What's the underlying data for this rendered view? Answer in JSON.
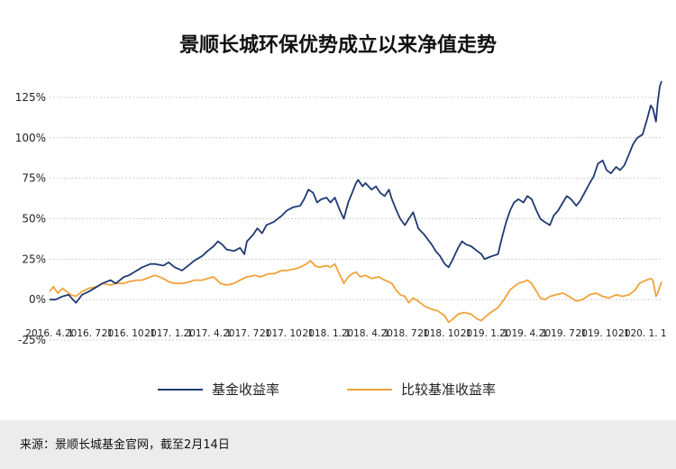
{
  "chart_data": {
    "type": "line",
    "title": "景顺长城环保优势成立以来净值走势",
    "y_unit": "%",
    "ylim": [
      -25,
      135
    ],
    "y_ticks": [
      -25,
      0,
      25,
      50,
      75,
      100,
      125
    ],
    "y_tick_labels": [
      "-25%",
      "0%",
      "25%",
      "50%",
      "75%",
      "100%",
      "125%"
    ],
    "x_range": [
      "2016-04-01",
      "2020-02-14"
    ],
    "x_ticks": [
      "2016-04-01",
      "2016-07-01",
      "2016-10-01",
      "2017-01-01",
      "2017-04-01",
      "2017-07-01",
      "2017-10-01",
      "2018-01-01",
      "2018-04-01",
      "2018-07-01",
      "2018-10-01",
      "2019-01-01",
      "2019-04-01",
      "2019-07-01",
      "2019-10-01",
      "2020-01-01"
    ],
    "x_tick_labels": [
      "2016. 4. 1",
      "2016. 7. 1",
      "2016. 10. 1",
      "2017. 1. 1",
      "2017. 4. 1",
      "2017. 7. 1",
      "2017. 10. 1",
      "2018. 1. 1",
      "2018. 4. 1",
      "2018. 7. 1",
      "2018. 10. 1",
      "2019. 1. 1",
      "2019. 4. 1",
      "2019. 7. 1",
      "2019. 10. 1",
      "2020. 1. 1"
    ],
    "grid": "horizontal",
    "legend": "bottom",
    "series": [
      {
        "name": "基金收益率",
        "color": "#1f3a73",
        "points": [
          [
            "2016-04-01",
            0
          ],
          [
            "2016-04-15",
            0
          ],
          [
            "2016-05-01",
            2
          ],
          [
            "2016-05-15",
            3
          ],
          [
            "2016-05-25",
            0
          ],
          [
            "2016-06-01",
            -2
          ],
          [
            "2016-06-15",
            3
          ],
          [
            "2016-07-01",
            5
          ],
          [
            "2016-07-20",
            8
          ],
          [
            "2016-08-01",
            10
          ],
          [
            "2016-08-20",
            12
          ],
          [
            "2016-09-01",
            10
          ],
          [
            "2016-09-20",
            14
          ],
          [
            "2016-10-01",
            15
          ],
          [
            "2016-10-20",
            18
          ],
          [
            "2016-11-01",
            20
          ],
          [
            "2016-11-20",
            22
          ],
          [
            "2016-12-01",
            22
          ],
          [
            "2016-12-20",
            21
          ],
          [
            "2017-01-01",
            23
          ],
          [
            "2017-01-15",
            20
          ],
          [
            "2017-02-01",
            18
          ],
          [
            "2017-02-20",
            22
          ],
          [
            "2017-03-01",
            24
          ],
          [
            "2017-03-20",
            27
          ],
          [
            "2017-04-01",
            30
          ],
          [
            "2017-04-15",
            33
          ],
          [
            "2017-04-25",
            36
          ],
          [
            "2017-05-05",
            34
          ],
          [
            "2017-05-15",
            31
          ],
          [
            "2017-06-01",
            30
          ],
          [
            "2017-06-15",
            32
          ],
          [
            "2017-06-25",
            28
          ],
          [
            "2017-07-01",
            36
          ],
          [
            "2017-07-15",
            40
          ],
          [
            "2017-07-25",
            44
          ],
          [
            "2017-08-05",
            41
          ],
          [
            "2017-08-15",
            46
          ],
          [
            "2017-09-01",
            48
          ],
          [
            "2017-09-20",
            52
          ],
          [
            "2017-10-01",
            55
          ],
          [
            "2017-10-15",
            57
          ],
          [
            "2017-11-01",
            58
          ],
          [
            "2017-11-10",
            62
          ],
          [
            "2017-11-20",
            68
          ],
          [
            "2017-12-01",
            66
          ],
          [
            "2017-12-10",
            60
          ],
          [
            "2017-12-20",
            62
          ],
          [
            "2018-01-01",
            63
          ],
          [
            "2018-01-10",
            60
          ],
          [
            "2018-01-20",
            63
          ],
          [
            "2018-02-01",
            55
          ],
          [
            "2018-02-10",
            50
          ],
          [
            "2018-02-20",
            60
          ],
          [
            "2018-03-01",
            66
          ],
          [
            "2018-03-10",
            72
          ],
          [
            "2018-03-15",
            74
          ],
          [
            "2018-03-25",
            70
          ],
          [
            "2018-04-01",
            72
          ],
          [
            "2018-04-15",
            68
          ],
          [
            "2018-04-25",
            70
          ],
          [
            "2018-05-05",
            66
          ],
          [
            "2018-05-15",
            64
          ],
          [
            "2018-05-25",
            68
          ],
          [
            "2018-06-01",
            62
          ],
          [
            "2018-06-10",
            56
          ],
          [
            "2018-06-20",
            50
          ],
          [
            "2018-07-01",
            46
          ],
          [
            "2018-07-10",
            50
          ],
          [
            "2018-07-20",
            54
          ],
          [
            "2018-08-01",
            44
          ],
          [
            "2018-08-15",
            40
          ],
          [
            "2018-09-01",
            34
          ],
          [
            "2018-09-10",
            30
          ],
          [
            "2018-09-20",
            27
          ],
          [
            "2018-10-01",
            22
          ],
          [
            "2018-10-10",
            20
          ],
          [
            "2018-10-20",
            25
          ],
          [
            "2018-11-01",
            32
          ],
          [
            "2018-11-10",
            36
          ],
          [
            "2018-11-20",
            34
          ],
          [
            "2018-12-01",
            33
          ],
          [
            "2018-12-15",
            30
          ],
          [
            "2018-12-25",
            28
          ],
          [
            "2019-01-01",
            25
          ],
          [
            "2019-01-10",
            26
          ],
          [
            "2019-01-20",
            27
          ],
          [
            "2019-02-01",
            28
          ],
          [
            "2019-02-10",
            38
          ],
          [
            "2019-02-20",
            48
          ],
          [
            "2019-03-01",
            55
          ],
          [
            "2019-03-10",
            60
          ],
          [
            "2019-03-20",
            62
          ],
          [
            "2019-04-01",
            60
          ],
          [
            "2019-04-10",
            64
          ],
          [
            "2019-04-20",
            62
          ],
          [
            "2019-05-01",
            55
          ],
          [
            "2019-05-10",
            50
          ],
          [
            "2019-05-20",
            48
          ],
          [
            "2019-06-01",
            46
          ],
          [
            "2019-06-10",
            52
          ],
          [
            "2019-06-20",
            55
          ],
          [
            "2019-07-01",
            60
          ],
          [
            "2019-07-10",
            64
          ],
          [
            "2019-07-20",
            62
          ],
          [
            "2019-08-01",
            58
          ],
          [
            "2019-08-10",
            61
          ],
          [
            "2019-08-20",
            66
          ],
          [
            "2019-09-01",
            72
          ],
          [
            "2019-09-10",
            76
          ],
          [
            "2019-09-20",
            84
          ],
          [
            "2019-10-01",
            86
          ],
          [
            "2019-10-10",
            80
          ],
          [
            "2019-10-20",
            78
          ],
          [
            "2019-11-01",
            82
          ],
          [
            "2019-11-10",
            80
          ],
          [
            "2019-11-20",
            83
          ],
          [
            "2019-12-01",
            90
          ],
          [
            "2019-12-10",
            96
          ],
          [
            "2019-12-20",
            100
          ],
          [
            "2020-01-01",
            102
          ],
          [
            "2020-01-10",
            110
          ],
          [
            "2020-01-20",
            120
          ],
          [
            "2020-01-25",
            118
          ],
          [
            "2020-02-01",
            110
          ],
          [
            "2020-02-05",
            122
          ],
          [
            "2020-02-10",
            132
          ],
          [
            "2020-02-14",
            135
          ]
        ]
      },
      {
        "name": "比较基准收益率",
        "color": "#f2a23a",
        "points": [
          [
            "2016-04-01",
            5
          ],
          [
            "2016-04-10",
            8
          ],
          [
            "2016-04-20",
            4
          ],
          [
            "2016-05-01",
            7
          ],
          [
            "2016-05-10",
            5
          ],
          [
            "2016-05-20",
            3
          ],
          [
            "2016-06-01",
            2
          ],
          [
            "2016-06-15",
            5
          ],
          [
            "2016-07-01",
            7
          ],
          [
            "2016-07-20",
            8
          ],
          [
            "2016-08-01",
            10
          ],
          [
            "2016-08-20",
            9
          ],
          [
            "2016-09-01",
            10
          ],
          [
            "2016-09-20",
            10
          ],
          [
            "2016-10-01",
            11
          ],
          [
            "2016-10-20",
            12
          ],
          [
            "2016-11-01",
            12
          ],
          [
            "2016-11-20",
            14
          ],
          [
            "2016-12-01",
            15
          ],
          [
            "2016-12-20",
            13
          ],
          [
            "2017-01-01",
            11
          ],
          [
            "2017-01-15",
            10
          ],
          [
            "2017-02-01",
            10
          ],
          [
            "2017-02-20",
            11
          ],
          [
            "2017-03-01",
            12
          ],
          [
            "2017-03-20",
            12
          ],
          [
            "2017-04-01",
            13
          ],
          [
            "2017-04-15",
            14
          ],
          [
            "2017-05-01",
            10
          ],
          [
            "2017-05-15",
            9
          ],
          [
            "2017-06-01",
            10
          ],
          [
            "2017-06-15",
            12
          ],
          [
            "2017-07-01",
            14
          ],
          [
            "2017-07-20",
            15
          ],
          [
            "2017-08-01",
            14
          ],
          [
            "2017-08-20",
            16
          ],
          [
            "2017-09-01",
            16
          ],
          [
            "2017-09-20",
            18
          ],
          [
            "2017-10-01",
            18
          ],
          [
            "2017-10-20",
            19
          ],
          [
            "2017-11-01",
            20
          ],
          [
            "2017-11-15",
            22
          ],
          [
            "2017-11-25",
            24
          ],
          [
            "2017-12-05",
            21
          ],
          [
            "2017-12-15",
            20
          ],
          [
            "2018-01-01",
            21
          ],
          [
            "2018-01-10",
            20
          ],
          [
            "2018-01-20",
            22
          ],
          [
            "2018-02-01",
            15
          ],
          [
            "2018-02-10",
            10
          ],
          [
            "2018-02-20",
            14
          ],
          [
            "2018-03-01",
            16
          ],
          [
            "2018-03-10",
            17
          ],
          [
            "2018-03-20",
            14
          ],
          [
            "2018-04-01",
            15
          ],
          [
            "2018-04-15",
            13
          ],
          [
            "2018-05-01",
            14
          ],
          [
            "2018-05-15",
            12
          ],
          [
            "2018-06-01",
            10
          ],
          [
            "2018-06-10",
            6
          ],
          [
            "2018-06-20",
            3
          ],
          [
            "2018-07-01",
            2
          ],
          [
            "2018-07-10",
            -2
          ],
          [
            "2018-07-20",
            1
          ],
          [
            "2018-08-01",
            -1
          ],
          [
            "2018-08-15",
            -4
          ],
          [
            "2018-09-01",
            -6
          ],
          [
            "2018-09-15",
            -7
          ],
          [
            "2018-10-01",
            -10
          ],
          [
            "2018-10-10",
            -14
          ],
          [
            "2018-10-20",
            -12
          ],
          [
            "2018-11-01",
            -9
          ],
          [
            "2018-11-15",
            -8
          ],
          [
            "2018-12-01",
            -9
          ],
          [
            "2018-12-15",
            -12
          ],
          [
            "2018-12-25",
            -13
          ],
          [
            "2019-01-01",
            -11
          ],
          [
            "2019-01-15",
            -8
          ],
          [
            "2019-02-01",
            -5
          ],
          [
            "2019-02-15",
            0
          ],
          [
            "2019-03-01",
            6
          ],
          [
            "2019-03-10",
            8
          ],
          [
            "2019-03-20",
            10
          ],
          [
            "2019-04-01",
            11
          ],
          [
            "2019-04-10",
            12
          ],
          [
            "2019-04-20",
            10
          ],
          [
            "2019-05-01",
            5
          ],
          [
            "2019-05-10",
            1
          ],
          [
            "2019-05-20",
            0
          ],
          [
            "2019-06-01",
            2
          ],
          [
            "2019-06-15",
            3
          ],
          [
            "2019-07-01",
            4
          ],
          [
            "2019-07-15",
            2
          ],
          [
            "2019-08-01",
            -1
          ],
          [
            "2019-08-15",
            0
          ],
          [
            "2019-09-01",
            3
          ],
          [
            "2019-09-15",
            4
          ],
          [
            "2019-10-01",
            2
          ],
          [
            "2019-10-15",
            1
          ],
          [
            "2019-11-01",
            3
          ],
          [
            "2019-11-15",
            2
          ],
          [
            "2019-12-01",
            3
          ],
          [
            "2019-12-15",
            6
          ],
          [
            "2019-12-25",
            10
          ],
          [
            "2020-01-01",
            11
          ],
          [
            "2020-01-10",
            12
          ],
          [
            "2020-01-20",
            13
          ],
          [
            "2020-01-25",
            12
          ],
          [
            "2020-02-01",
            2
          ],
          [
            "2020-02-05",
            4
          ],
          [
            "2020-02-10",
            8
          ],
          [
            "2020-02-14",
            11
          ]
        ]
      }
    ]
  },
  "source_note": "来源：景顺长城基金官网，截至2月14日"
}
